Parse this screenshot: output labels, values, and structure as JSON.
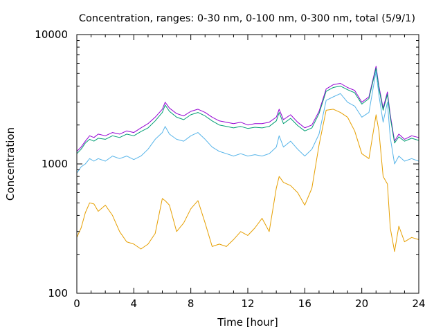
{
  "chart_data": {
    "type": "line",
    "title": "Concentration, ranges: 0-30 nm, 0-100 nm, 0-300 nm, total (5/9/1)",
    "xlabel": "Time [hour]",
    "ylabel": "Concentration",
    "xlim": [
      0,
      24
    ],
    "ylim": [
      100,
      10000
    ],
    "y_scale": "log",
    "x_ticks": [
      0,
      4,
      8,
      12,
      16,
      20,
      24
    ],
    "x_tick_labels": [
      "0",
      "4",
      "8",
      "12",
      "16",
      "20",
      "24"
    ],
    "y_ticks": [
      100,
      1000,
      10000
    ],
    "y_tick_labels": [
      "100",
      "1000",
      "10000"
    ],
    "grid": false,
    "legend": "none",
    "series": [
      {
        "color": "#9400d3",
        "x": [
          0,
          0.3,
          0.6,
          0.9,
          1.2,
          1.5,
          2.0,
          2.5,
          3.0,
          3.5,
          4.0,
          4.5,
          5.0,
          5.5,
          6.0,
          6.2,
          6.5,
          7.0,
          7.5,
          8.0,
          8.5,
          9.0,
          9.5,
          10.0,
          10.5,
          11.0,
          11.5,
          12.0,
          12.5,
          13.0,
          13.5,
          14.0,
          14.2,
          14.5,
          15.0,
          15.5,
          16.0,
          16.5,
          17.0,
          17.5,
          18.0,
          18.5,
          19.0,
          19.5,
          20.0,
          20.5,
          21.0,
          21.2,
          21.5,
          21.8,
          22.0,
          22.3,
          22.6,
          23.0,
          23.5,
          24.0
        ],
        "y": [
          1250,
          1350,
          1500,
          1650,
          1600,
          1700,
          1650,
          1750,
          1700,
          1800,
          1750,
          1900,
          2050,
          2300,
          2650,
          3000,
          2700,
          2450,
          2350,
          2550,
          2650,
          2500,
          2300,
          2150,
          2100,
          2050,
          2100,
          2000,
          2050,
          2050,
          2100,
          2300,
          2650,
          2200,
          2400,
          2100,
          1900,
          2000,
          2550,
          3800,
          4100,
          4200,
          3900,
          3700,
          3000,
          3300,
          5700,
          4000,
          2700,
          3600,
          2400,
          1500,
          1700,
          1550,
          1650,
          1600
        ]
      },
      {
        "color": "#009e73",
        "x": [
          0,
          0.3,
          0.6,
          0.9,
          1.2,
          1.5,
          2.0,
          2.5,
          3.0,
          3.5,
          4.0,
          4.5,
          5.0,
          5.5,
          6.0,
          6.2,
          6.5,
          7.0,
          7.5,
          8.0,
          8.5,
          9.0,
          9.5,
          10.0,
          10.5,
          11.0,
          11.5,
          12.0,
          12.5,
          13.0,
          13.5,
          14.0,
          14.2,
          14.5,
          15.0,
          15.5,
          16.0,
          16.5,
          17.0,
          17.5,
          18.0,
          18.5,
          19.0,
          19.5,
          20.0,
          20.5,
          21.0,
          21.2,
          21.5,
          21.8,
          22.0,
          22.3,
          22.6,
          23.0,
          23.5,
          24.0
        ],
        "y": [
          1200,
          1300,
          1450,
          1550,
          1500,
          1580,
          1550,
          1650,
          1600,
          1700,
          1650,
          1780,
          1900,
          2150,
          2500,
          2850,
          2550,
          2300,
          2200,
          2400,
          2500,
          2350,
          2150,
          2000,
          1950,
          1900,
          1950,
          1880,
          1920,
          1900,
          1950,
          2150,
          2500,
          2050,
          2250,
          1980,
          1800,
          1900,
          2450,
          3650,
          3900,
          4000,
          3750,
          3550,
          2900,
          3200,
          5500,
          3850,
          2600,
          3450,
          2300,
          1450,
          1620,
          1500,
          1580,
          1520
        ]
      },
      {
        "color": "#56b4e9",
        "x": [
          0,
          0.3,
          0.6,
          0.9,
          1.2,
          1.5,
          2.0,
          2.5,
          3.0,
          3.5,
          4.0,
          4.5,
          5.0,
          5.5,
          6.0,
          6.2,
          6.5,
          7.0,
          7.5,
          8.0,
          8.5,
          9.0,
          9.5,
          10.0,
          10.5,
          11.0,
          11.5,
          12.0,
          12.5,
          13.0,
          13.5,
          14.0,
          14.2,
          14.5,
          15.0,
          15.5,
          16.0,
          16.5,
          17.0,
          17.5,
          18.0,
          18.5,
          19.0,
          19.5,
          20.0,
          20.5,
          21.0,
          21.2,
          21.5,
          21.8,
          22.0,
          22.3,
          22.6,
          23.0,
          23.5,
          24.0
        ],
        "y": [
          850,
          950,
          1000,
          1100,
          1050,
          1100,
          1050,
          1150,
          1100,
          1150,
          1080,
          1150,
          1300,
          1550,
          1750,
          1950,
          1700,
          1550,
          1500,
          1650,
          1750,
          1550,
          1350,
          1250,
          1200,
          1150,
          1200,
          1150,
          1180,
          1150,
          1200,
          1350,
          1650,
          1350,
          1500,
          1300,
          1150,
          1300,
          1700,
          3100,
          3300,
          3500,
          3000,
          2800,
          2300,
          2500,
          5200,
          3400,
          2100,
          3000,
          1600,
          1000,
          1150,
          1050,
          1100,
          1050
        ]
      },
      {
        "color": "#e69f00",
        "x": [
          0,
          0.3,
          0.6,
          0.9,
          1.2,
          1.5,
          2.0,
          2.5,
          3.0,
          3.5,
          4.0,
          4.5,
          5.0,
          5.5,
          6.0,
          6.2,
          6.5,
          7.0,
          7.5,
          8.0,
          8.5,
          9.0,
          9.5,
          10.0,
          10.5,
          11.0,
          11.5,
          12.0,
          12.5,
          13.0,
          13.5,
          14.0,
          14.2,
          14.5,
          15.0,
          15.5,
          16.0,
          16.5,
          17.0,
          17.5,
          18.0,
          18.5,
          19.0,
          19.5,
          20.0,
          20.5,
          21.0,
          21.2,
          21.5,
          21.8,
          22.0,
          22.3,
          22.6,
          23.0,
          23.5,
          24.0
        ],
        "y": [
          270,
          320,
          420,
          500,
          490,
          430,
          480,
          400,
          300,
          250,
          240,
          220,
          240,
          290,
          540,
          520,
          480,
          300,
          350,
          450,
          520,
          350,
          230,
          240,
          230,
          260,
          300,
          280,
          320,
          380,
          300,
          650,
          800,
          720,
          680,
          600,
          480,
          650,
          1400,
          2600,
          2650,
          2500,
          2300,
          1800,
          1200,
          1100,
          2400,
          1800,
          800,
          700,
          320,
          210,
          330,
          250,
          270,
          260
        ]
      }
    ]
  }
}
